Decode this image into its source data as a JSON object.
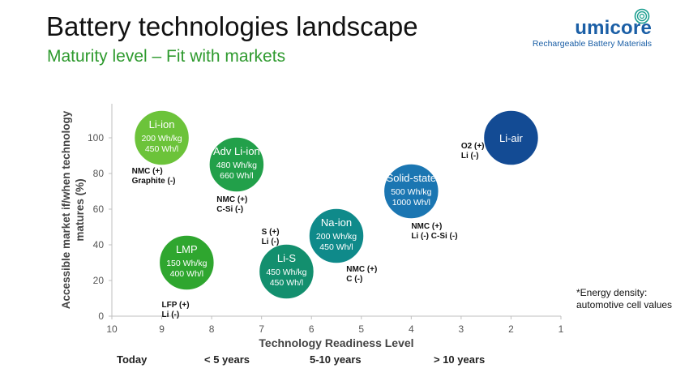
{
  "header": {
    "title": "Battery technologies landscape",
    "subtitle": "Maturity level – Fit with markets"
  },
  "logo": {
    "wordmark": "umicore",
    "tagline": "Rechargeable Battery Materials",
    "icon": "swirl-logo-icon",
    "color": "#1b5fa6"
  },
  "chart_data": {
    "type": "scatter",
    "xlabel": "Technology Readiness Level",
    "ylabel_lines": [
      "Accessible market if/when technology",
      "matures (%)"
    ],
    "x_ticks": [
      "10",
      "9",
      "8",
      "7",
      "6",
      "5",
      "4",
      "3",
      "2",
      "1"
    ],
    "y_ticks": [
      "0",
      "20",
      "40",
      "60",
      "80",
      "100"
    ],
    "xlim": [
      10,
      1
    ],
    "ylim": [
      0,
      100
    ],
    "x_reversed": true,
    "grid": false,
    "bubbles": [
      {
        "label": "Li-ion",
        "specs": [
          "200 Wh/kg",
          "450 Wh/l"
        ],
        "x": 9.0,
        "y": 100,
        "color": "#6cc33a"
      },
      {
        "label": "Adv Li-ion",
        "specs": [
          "480 Wh/kg",
          "660 Wh/l"
        ],
        "x": 7.5,
        "y": 85,
        "color": "#22a04a"
      },
      {
        "label": "LMP",
        "specs": [
          "150 Wh/kg",
          "400 Wh/l"
        ],
        "x": 8.5,
        "y": 30,
        "color": "#2fa62f"
      },
      {
        "label": "Li-S",
        "specs": [
          "450 Wh/kg",
          "450 Wh/l"
        ],
        "x": 6.5,
        "y": 25,
        "color": "#138f6e"
      },
      {
        "label": "Na-ion",
        "specs": [
          "200 Wh/kg",
          "450 Wh/l"
        ],
        "x": 5.5,
        "y": 45,
        "color": "#0f8a8a"
      },
      {
        "label": "Solid-state",
        "specs": [
          "500 Wh/kg",
          "1000 Wh/l"
        ],
        "x": 4.0,
        "y": 70,
        "color": "#1b76b2"
      },
      {
        "label": "Li-air",
        "specs": [],
        "x": 2.0,
        "y": 100,
        "color": "#134b94"
      }
    ],
    "annotations": [
      {
        "lines": [
          "NMC (+)",
          "Graphite (-)"
        ],
        "x": 9.6,
        "y": 80
      },
      {
        "lines": [
          "NMC (+)",
          "C-Si (-)"
        ],
        "x": 7.9,
        "y": 64
      },
      {
        "lines": [
          "S (+)",
          "Li (-)"
        ],
        "x": 7.0,
        "y": 46
      },
      {
        "lines": [
          "NMC (+)",
          "C (-)"
        ],
        "x": 5.3,
        "y": 25
      },
      {
        "lines": [
          "NMC (+)",
          "Li (-) C-Si (-)"
        ],
        "x": 4.0,
        "y": 49
      },
      {
        "lines": [
          "O2 (+)",
          "Li (-)"
        ],
        "x": 3.0,
        "y": 94
      },
      {
        "lines": [
          "LFP (+)",
          "Li (-)"
        ],
        "x": 9.0,
        "y": 5
      }
    ],
    "timeline": [
      "Today",
      "< 5 years",
      "5-10 years",
      "> 10 years"
    ]
  },
  "footnote": {
    "lines": [
      "*Energy density:",
      "automotive cell values"
    ]
  }
}
